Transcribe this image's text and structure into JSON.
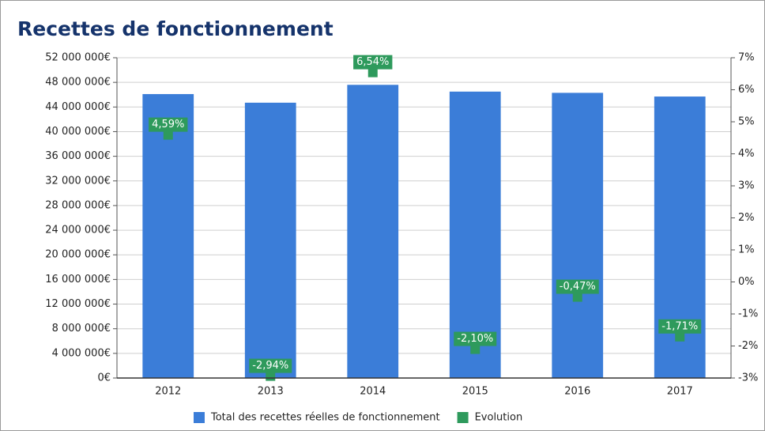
{
  "chart_data": {
    "type": "bar",
    "title": "Recettes de fonctionnement",
    "categories": [
      "2012",
      "2013",
      "2014",
      "2015",
      "2016",
      "2017"
    ],
    "series": [
      {
        "name": "Total des recettes réelles de fonctionnement",
        "color": "#3b7dd8",
        "values": [
          46100000,
          44700000,
          47600000,
          46500000,
          46300000,
          45700000
        ]
      },
      {
        "name": "Evolution",
        "color": "#2e9a5c",
        "axis": "y2",
        "type": "scatter",
        "values": [
          4.59,
          -2.94,
          6.54,
          -2.1,
          -0.47,
          -1.71
        ],
        "value_labels": [
          "4,59%",
          "-2,94%",
          "6,54%",
          "-2,10%",
          "-0,47%",
          "-1,71%"
        ]
      }
    ],
    "ylim": [
      0,
      52000000
    ],
    "yticks": [
      {
        "value": 0,
        "label": "0€"
      },
      {
        "value": 4000000,
        "label": "4 000 000€"
      },
      {
        "value": 8000000,
        "label": "8 000 000€"
      },
      {
        "value": 12000000,
        "label": "12 000 000€"
      },
      {
        "value": 16000000,
        "label": "16 000 000€"
      },
      {
        "value": 20000000,
        "label": "20 000 000€"
      },
      {
        "value": 24000000,
        "label": "24 000 000€"
      },
      {
        "value": 28000000,
        "label": "28 000 000€"
      },
      {
        "value": 32000000,
        "label": "32 000 000€"
      },
      {
        "value": 36000000,
        "label": "36 000 000€"
      },
      {
        "value": 40000000,
        "label": "40 000 000€"
      },
      {
        "value": 44000000,
        "label": "44 000 000€"
      },
      {
        "value": 48000000,
        "label": "48 000 000€"
      },
      {
        "value": 52000000,
        "label": "52 000 000€"
      }
    ],
    "y2lim": [
      -3,
      7
    ],
    "y2ticks": [
      {
        "value": -3,
        "label": "-3%"
      },
      {
        "value": -2,
        "label": "-2%"
      },
      {
        "value": -1,
        "label": "-1%"
      },
      {
        "value": 0,
        "label": "0%"
      },
      {
        "value": 1,
        "label": "1%"
      },
      {
        "value": 2,
        "label": "2%"
      },
      {
        "value": 3,
        "label": "3%"
      },
      {
        "value": 4,
        "label": "4%"
      },
      {
        "value": 5,
        "label": "5%"
      },
      {
        "value": 6,
        "label": "6%"
      },
      {
        "value": 7,
        "label": "7%"
      }
    ],
    "grid": true,
    "legend": "bottom"
  }
}
